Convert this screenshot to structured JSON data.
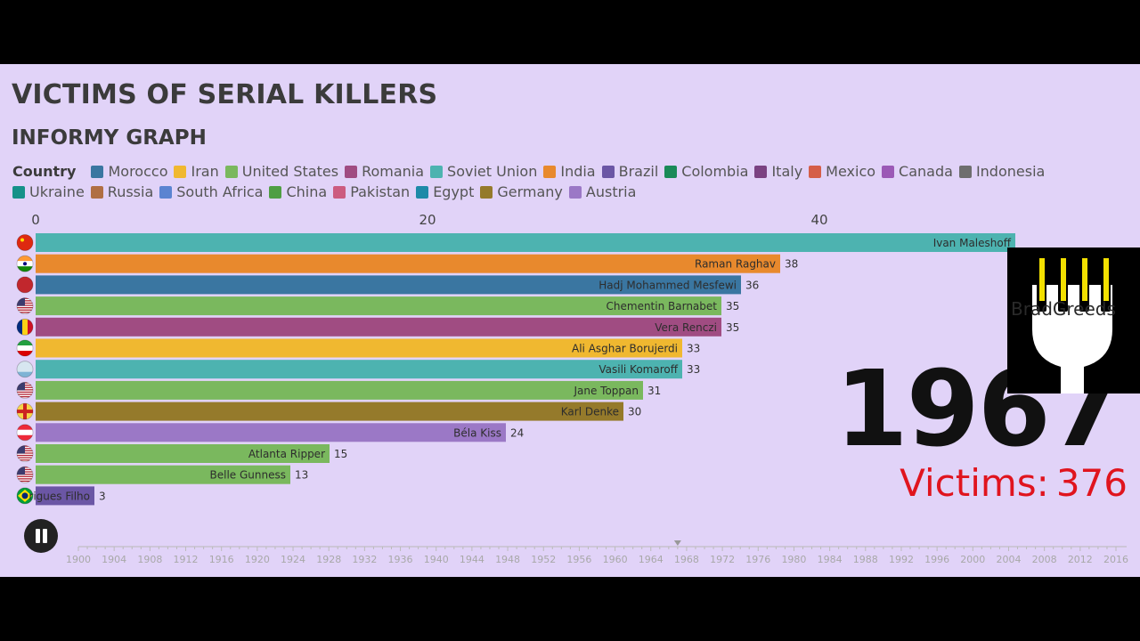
{
  "title": "VICTIMS OF SERIAL KILLERS",
  "subtitle": "INFORMY GRAPH",
  "legend": {
    "title": "Country",
    "items": [
      {
        "label": "Morocco",
        "color": "#3a76a1"
      },
      {
        "label": "Iran",
        "color": "#f0b830"
      },
      {
        "label": "United States",
        "color": "#7ab85e"
      },
      {
        "label": "Romania",
        "color": "#a04c82"
      },
      {
        "label": "Soviet Union",
        "color": "#4db3b0"
      },
      {
        "label": "India",
        "color": "#e8892d"
      },
      {
        "label": "Brazil",
        "color": "#6b56a5"
      },
      {
        "label": "Colombia",
        "color": "#1a8a58"
      },
      {
        "label": "Italy",
        "color": "#7b4282"
      },
      {
        "label": "Mexico",
        "color": "#d55e48"
      },
      {
        "label": "Canada",
        "color": "#9b59b6"
      },
      {
        "label": "Indonesia",
        "color": "#6e6e6e"
      },
      {
        "label": "Ukraine",
        "color": "#159189"
      },
      {
        "label": "Russia",
        "color": "#b06f43"
      },
      {
        "label": "South Africa",
        "color": "#5b84d1"
      },
      {
        "label": "China",
        "color": "#4f9e43"
      },
      {
        "label": "Pakistan",
        "color": "#cc5c80"
      },
      {
        "label": "Egypt",
        "color": "#1e8aa8"
      },
      {
        "label": "Germany",
        "color": "#957a2b"
      },
      {
        "label": "Austria",
        "color": "#9b78c6"
      }
    ]
  },
  "chart_data": {
    "type": "bar",
    "orientation": "horizontal",
    "x_ticks": [
      0,
      20,
      40
    ],
    "xlim": [
      0,
      52.5
    ],
    "bars": [
      {
        "label": "Ivan Maleshoff",
        "value": 50,
        "country": "Soviet Union",
        "color": "#4db3b0",
        "flag": "china"
      },
      {
        "label": "Raman Raghav",
        "value": 38,
        "country": "India",
        "color": "#e8892d",
        "flag": "india"
      },
      {
        "label": "Hadj Mohammed Mesfewi",
        "value": 36,
        "country": "Morocco",
        "color": "#3a76a1",
        "flag": "morocco"
      },
      {
        "label": "Chementin Barnabet",
        "value": 35,
        "country": "United States",
        "color": "#7ab85e",
        "flag": "usa"
      },
      {
        "label": "Vera Renczi",
        "value": 35,
        "country": "Romania",
        "color": "#a04c82",
        "flag": "romania"
      },
      {
        "label": "Ali Asghar Borujerdi",
        "value": 33,
        "country": "Iran",
        "color": "#f0b830",
        "flag": "iran"
      },
      {
        "label": "Vasili Komaroff",
        "value": 33,
        "country": "Soviet Union",
        "color": "#4db3b0",
        "flag": "soviet"
      },
      {
        "label": "Jane Toppan",
        "value": 31,
        "country": "United States",
        "color": "#7ab85e",
        "flag": "usa"
      },
      {
        "label": "Karl Denke",
        "value": 30,
        "country": "Germany",
        "color": "#957a2b",
        "flag": "germany"
      },
      {
        "label": "Béla Kiss",
        "value": 24,
        "country": "Austria",
        "color": "#9b78c6",
        "flag": "austria"
      },
      {
        "label": "Atlanta Ripper",
        "value": 15,
        "country": "United States",
        "color": "#7ab85e",
        "flag": "usa"
      },
      {
        "label": "Belle Gunness",
        "value": 13,
        "country": "United States",
        "color": "#7ab85e",
        "flag": "usa"
      },
      {
        "label": "rigues Filho",
        "value": 3,
        "country": "Brazil",
        "color": "#6b56a5",
        "flag": "brazil"
      }
    ]
  },
  "year": "1967",
  "victims": {
    "label": "Victims:",
    "value": "376"
  },
  "logo_text": "BradGreeds",
  "timeline": {
    "years": [
      "1900",
      "1904",
      "1908",
      "1912",
      "1916",
      "1920",
      "1924",
      "1928",
      "1932",
      "1936",
      "1940",
      "1944",
      "1948",
      "1952",
      "1956",
      "1960",
      "1964",
      "1968",
      "1972",
      "1976",
      "1980",
      "1984",
      "1988",
      "1992",
      "1996",
      "2000",
      "2004",
      "2008",
      "2012",
      "2016"
    ],
    "current": 1967
  },
  "controls": {
    "pause_icon": "pause-icon"
  }
}
